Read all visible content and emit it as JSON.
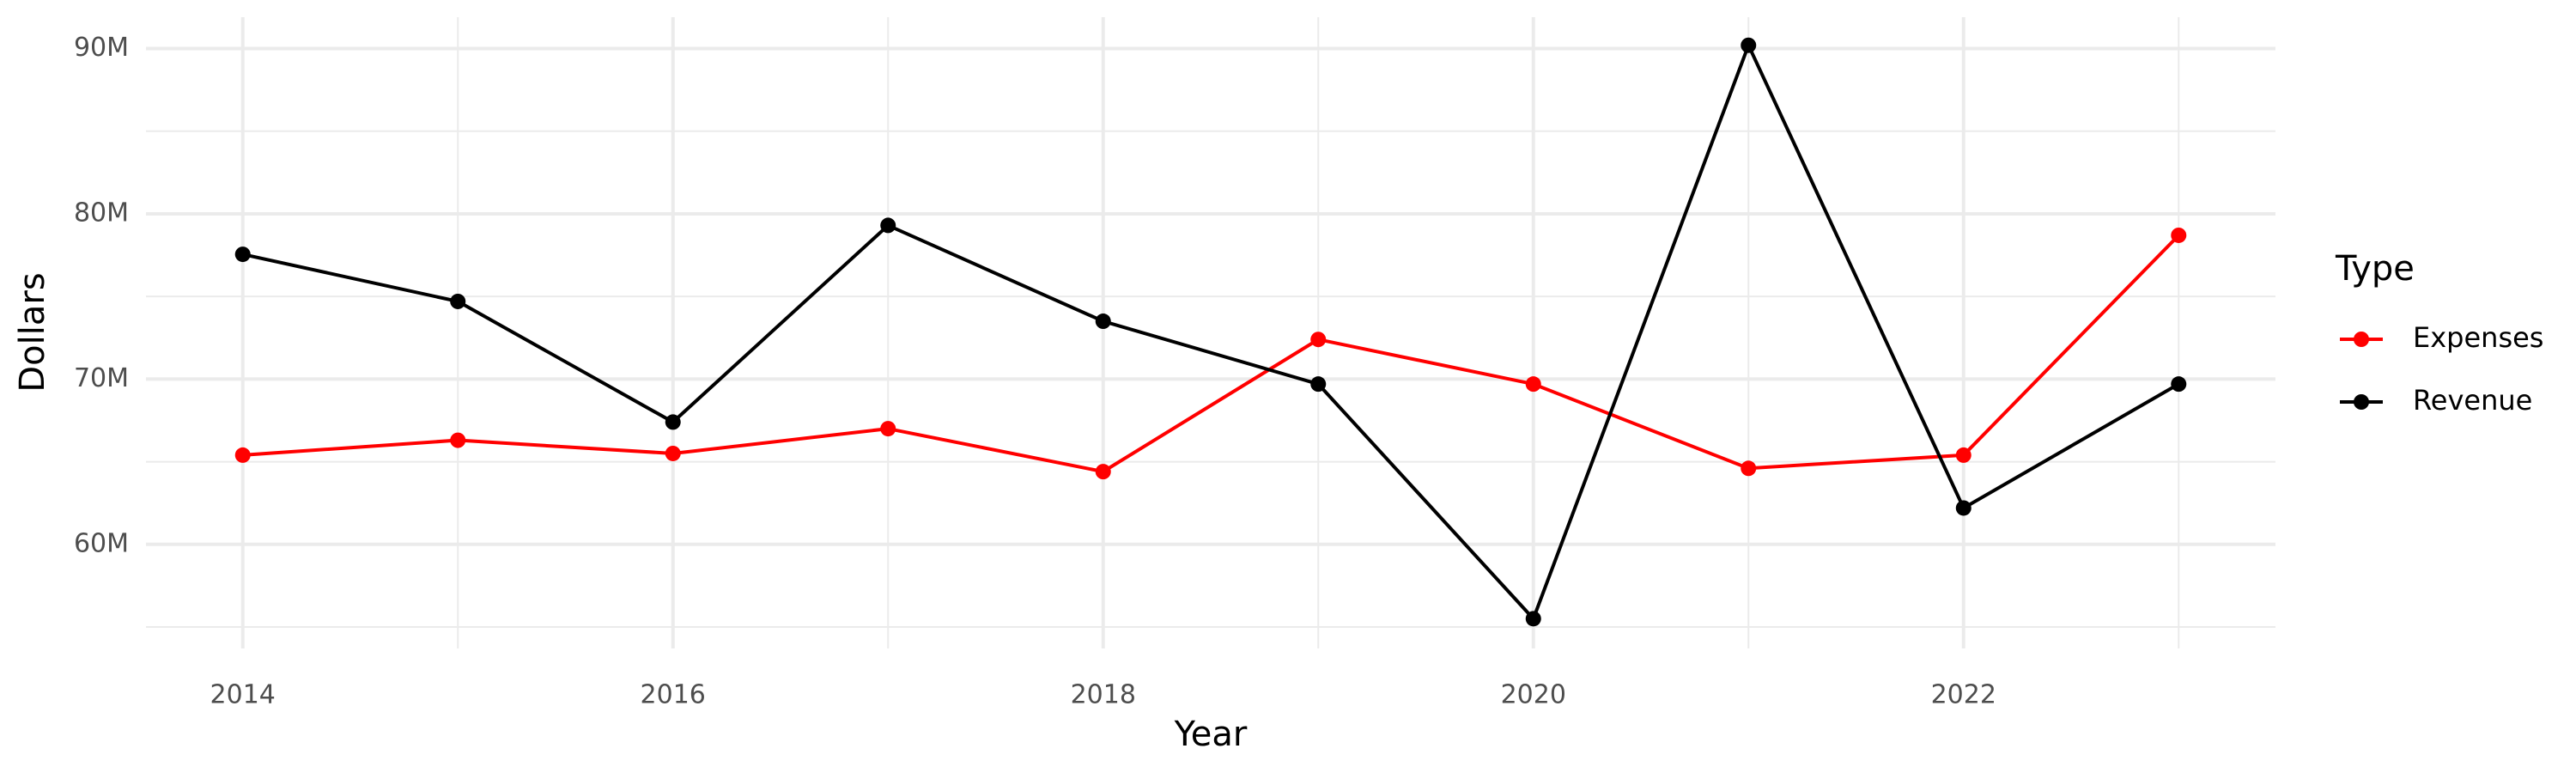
{
  "chart_data": {
    "type": "line",
    "x_label": "Year",
    "y_label": "Dollars",
    "legend_title": "Type",
    "x": [
      2014,
      2015,
      2016,
      2017,
      2018,
      2019,
      2020,
      2021,
      2022,
      2023
    ],
    "series": [
      {
        "name": "Expenses",
        "color": "#ff0000",
        "values": [
          65400000,
          66300000,
          65500000,
          67000000,
          64400000,
          72400000,
          69700000,
          64600000,
          65400000,
          78700000
        ]
      },
      {
        "name": "Revenue",
        "color": "#000000",
        "values": [
          77550000,
          74700000,
          67400000,
          79300000,
          73500000,
          69700000,
          55500000,
          90200000,
          62200000,
          69700000
        ]
      }
    ],
    "xlim": [
      2013.55,
      2023.45
    ],
    "xticks": [
      2014,
      2016,
      2018,
      2020,
      2022
    ],
    "ylim": [
      53700000,
      91900000
    ],
    "yticks": [
      {
        "value": 60000000,
        "label": "60M"
      },
      {
        "value": 70000000,
        "label": "70M"
      },
      {
        "value": 80000000,
        "label": "80M"
      },
      {
        "value": 90000000,
        "label": "90M"
      }
    ],
    "grid": true,
    "legend": "right"
  }
}
